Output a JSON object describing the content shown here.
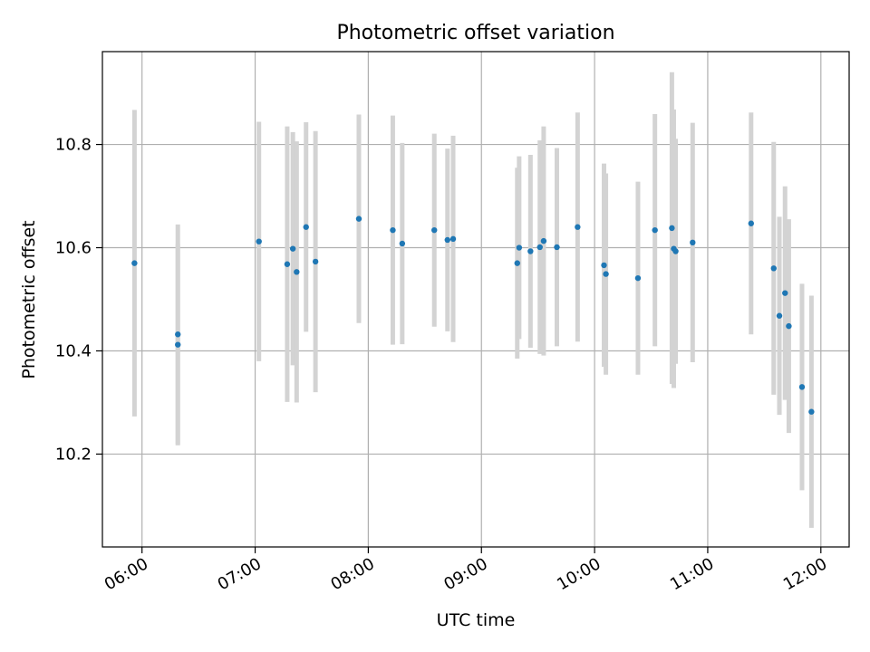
{
  "chart_data": {
    "type": "scatter",
    "title": "Photometric offset variation",
    "xlabel": "UTC time",
    "ylabel": "Photometric offset",
    "x_ticks": [
      "06:00",
      "07:00",
      "08:00",
      "09:00",
      "10:00",
      "11:00",
      "12:00"
    ],
    "y_ticks": [
      "10.2",
      "10.4",
      "10.6",
      "10.8"
    ],
    "xlim": [
      "05:39",
      "12:15"
    ],
    "ylim": [
      10.02,
      10.98
    ],
    "grid": true,
    "series": [
      {
        "marker_color": "#1f77b4",
        "errorbar_color": "#d3d3d3",
        "points": [
          {
            "x": "05:56",
            "y": 10.57,
            "err": 0.297
          },
          {
            "x": "06:19",
            "y": 10.432,
            "err": 0.213
          },
          {
            "x": "06:19",
            "y": 10.412,
            "err": 0.195
          },
          {
            "x": "07:02",
            "y": 10.612,
            "err": 0.232
          },
          {
            "x": "07:17",
            "y": 10.568,
            "err": 0.267
          },
          {
            "x": "07:20",
            "y": 10.598,
            "err": 0.226
          },
          {
            "x": "07:22",
            "y": 10.553,
            "err": 0.253
          },
          {
            "x": "07:27",
            "y": 10.64,
            "err": 0.203
          },
          {
            "x": "07:32",
            "y": 10.573,
            "err": 0.253
          },
          {
            "x": "07:55",
            "y": 10.656,
            "err": 0.202
          },
          {
            "x": "08:13",
            "y": 10.634,
            "err": 0.222
          },
          {
            "x": "08:18",
            "y": 10.608,
            "err": 0.195
          },
          {
            "x": "08:35",
            "y": 10.634,
            "err": 0.187
          },
          {
            "x": "08:42",
            "y": 10.615,
            "err": 0.177
          },
          {
            "x": "08:45",
            "y": 10.617,
            "err": 0.2
          },
          {
            "x": "09:19",
            "y": 10.57,
            "err": 0.185
          },
          {
            "x": "09:20",
            "y": 10.6,
            "err": 0.177
          },
          {
            "x": "09:26",
            "y": 10.593,
            "err": 0.187
          },
          {
            "x": "09:31",
            "y": 10.601,
            "err": 0.207
          },
          {
            "x": "09:33",
            "y": 10.613,
            "err": 0.222
          },
          {
            "x": "09:40",
            "y": 10.601,
            "err": 0.192
          },
          {
            "x": "09:51",
            "y": 10.64,
            "err": 0.222
          },
          {
            "x": "10:05",
            "y": 10.566,
            "err": 0.197
          },
          {
            "x": "10:06",
            "y": 10.549,
            "err": 0.195
          },
          {
            "x": "10:23",
            "y": 10.541,
            "err": 0.187
          },
          {
            "x": "10:32",
            "y": 10.634,
            "err": 0.225
          },
          {
            "x": "10:41",
            "y": 10.638,
            "err": 0.302
          },
          {
            "x": "10:42",
            "y": 10.598,
            "err": 0.27
          },
          {
            "x": "10:43",
            "y": 10.593,
            "err": 0.218
          },
          {
            "x": "10:52",
            "y": 10.61,
            "err": 0.232
          },
          {
            "x": "11:23",
            "y": 10.647,
            "err": 0.215
          },
          {
            "x": "11:35",
            "y": 10.56,
            "err": 0.245
          },
          {
            "x": "11:38",
            "y": 10.468,
            "err": 0.192
          },
          {
            "x": "11:41",
            "y": 10.512,
            "err": 0.207
          },
          {
            "x": "11:43",
            "y": 10.448,
            "err": 0.207
          },
          {
            "x": "11:50",
            "y": 10.33,
            "err": 0.2
          },
          {
            "x": "11:55",
            "y": 10.282,
            "err": 0.225
          }
        ]
      }
    ]
  }
}
